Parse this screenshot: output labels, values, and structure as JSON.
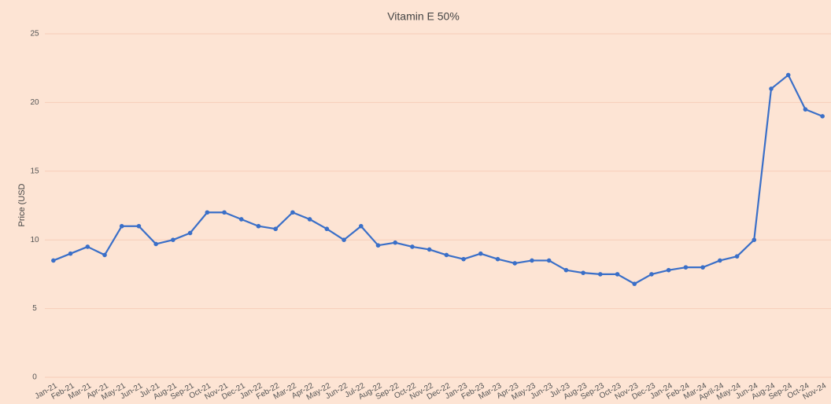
{
  "chart_data": {
    "type": "line",
    "title": "Vitamin E 50%",
    "y_label": "Price (USD",
    "categories": [
      "Jan-21",
      "Feb-21",
      "Mar-21",
      "Apr-21",
      "May-21",
      "Jun-21",
      "Jul-21",
      "Aug-21",
      "Sep-21",
      "Oct-21",
      "Nov-21",
      "Dec-21",
      "Jan-22",
      "Feb-22",
      "Mar-22",
      "Apr-22",
      "May-22",
      "Jun-22",
      "Jul-22",
      "Aug-22",
      "Sep-22",
      "Oct-22",
      "Nov-22",
      "Dec-22",
      "Jan-23",
      "Feb-23",
      "Mar-23",
      "Apr-23",
      "May-23",
      "Jun-23",
      "Jul-23",
      "Aug-23",
      "Sep-23",
      "Oct-23",
      "Nov-23",
      "Dec-23",
      "Jan-24",
      "Feb-24",
      "Mar-24",
      "April-24",
      "May-24",
      "Jun-24",
      "Aug-24",
      "Sep-24",
      "Oct-24",
      "Nov-24"
    ],
    "series": [
      {
        "name": "Price",
        "color": "#3a6fc8",
        "values": [
          8.5,
          9,
          9.5,
          8.9,
          11,
          11,
          9.7,
          10,
          10.5,
          12,
          12,
          11.5,
          11,
          10.8,
          12,
          11.5,
          10.8,
          10,
          11,
          9.6,
          9.8,
          9.5,
          9.3,
          8.9,
          8.6,
          9,
          8.6,
          8.3,
          8.5,
          8.5,
          7.8,
          7.6,
          7.5,
          7.5,
          6.8,
          7.5,
          7.8,
          8,
          8,
          8.5,
          8.8,
          10,
          21,
          22,
          19.5,
          19
        ]
      }
    ],
    "ylim": [
      0,
      25
    ],
    "yticks": [
      0,
      5,
      10,
      15,
      20,
      25
    ],
    "grid": true
  }
}
